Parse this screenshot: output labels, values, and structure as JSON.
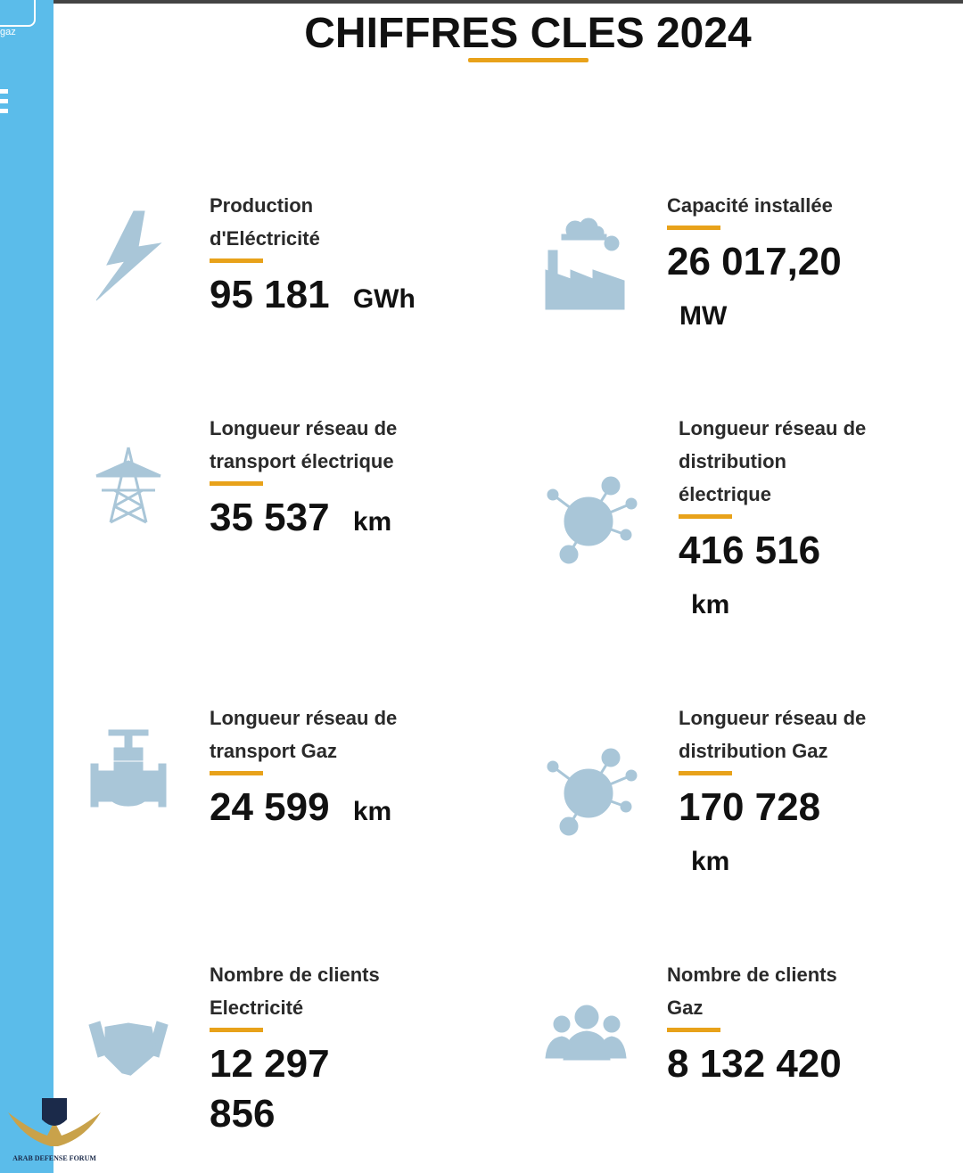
{
  "sidebar": {
    "tab": "gaz"
  },
  "title": "CHIFFRES CLES 2024",
  "cards": [
    {
      "label_lines": [
        "Production",
        "d'Eléctricité"
      ],
      "value": "95 181",
      "unit": "GWh"
    },
    {
      "label_lines": [
        "Capacité installée"
      ],
      "value": "26 017,20",
      "unit": "MW"
    },
    {
      "label_lines": [
        "Longueur réseau de",
        "transport électrique"
      ],
      "value": "35 537",
      "unit": "km"
    },
    {
      "label_lines": [
        "Longueur réseau de",
        "distribution",
        "électrique"
      ],
      "value": "416 516",
      "unit": "km"
    },
    {
      "label_lines": [
        "Longueur réseau de",
        "transport Gaz"
      ],
      "value": "24 599",
      "unit": "km"
    },
    {
      "label_lines": [
        "Longueur réseau de",
        "distribution Gaz"
      ],
      "value": "170 728",
      "unit": "km"
    },
    {
      "label_lines": [
        "Nombre de clients",
        "Electricité"
      ],
      "value": "12 297 856"
    },
    {
      "label_lines": [
        "Nombre de clients",
        "Gaz"
      ],
      "value": "8 132 420"
    }
  ],
  "watermark": "ARAB DEFENSE FORUM"
}
